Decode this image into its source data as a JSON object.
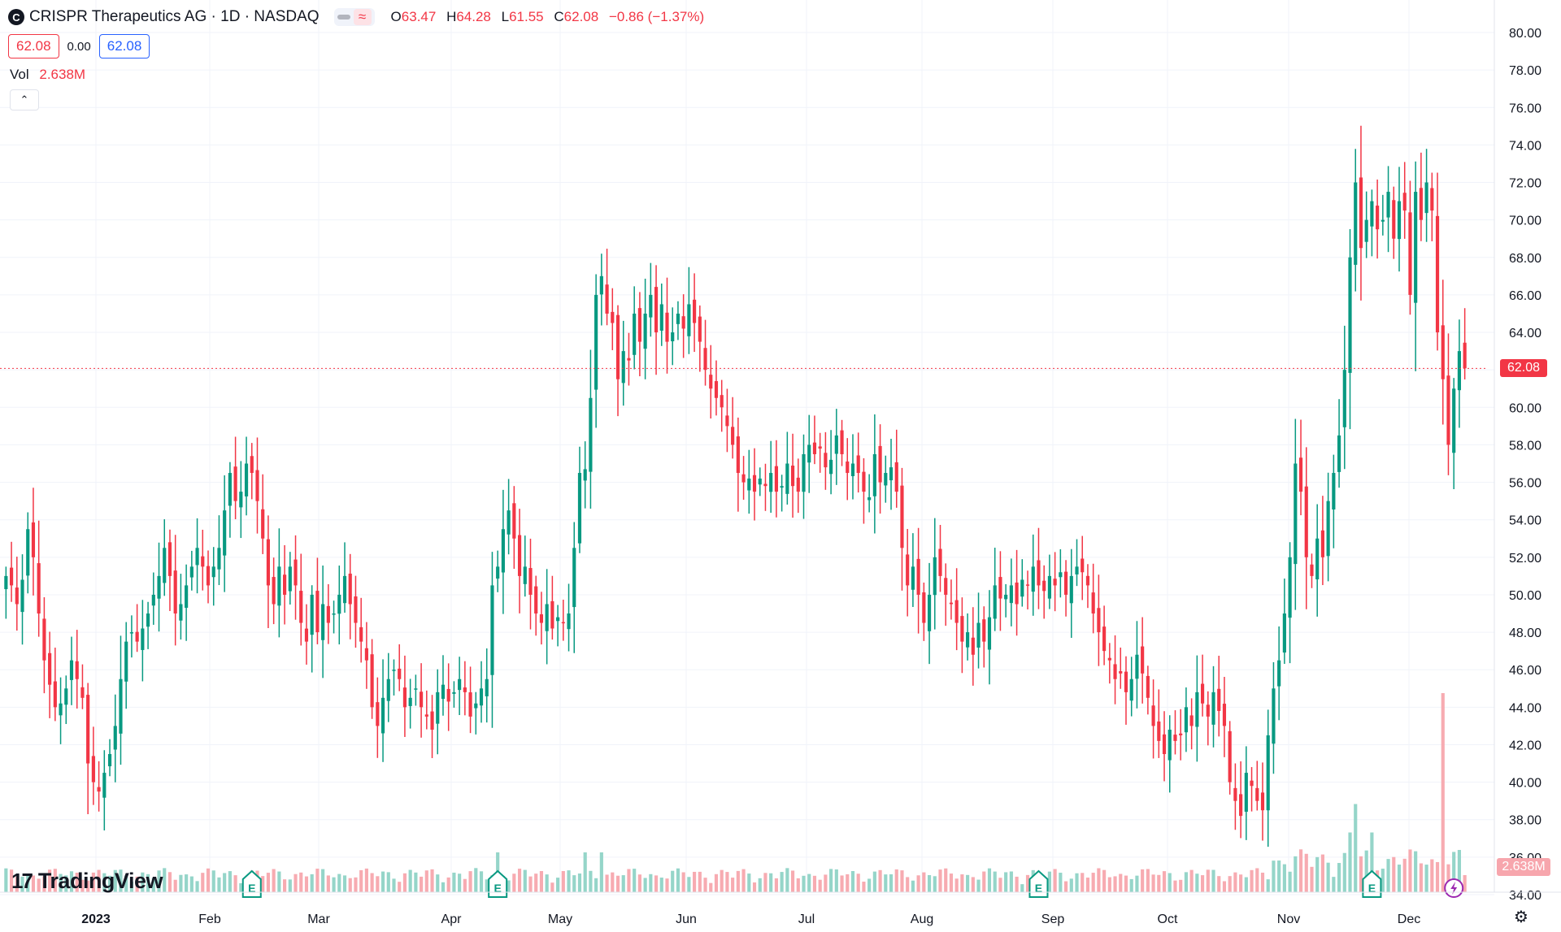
{
  "header": {
    "logo_glyph": "C",
    "symbol_line": "CRISPR Therapeutics AG · 1D · NASDAQ",
    "wave_icon": "≈",
    "ohlc": {
      "o_label": "O",
      "o_value": "63.47",
      "h_label": "H",
      "h_value": "64.28",
      "l_label": "L",
      "l_value": "61.55",
      "c_label": "C",
      "c_value": "62.08",
      "change": "−0.86 (−1.37%)"
    },
    "bid": "62.08",
    "spread": "0.00",
    "ask": "62.08",
    "vol_label": "Vol",
    "vol_value": "2.638M",
    "collapse_glyph": "⌃"
  },
  "brand": {
    "mark": "17",
    "name": "TradingView"
  },
  "last_price_label": "62.08",
  "last_volume_label": "2.638M",
  "earnings_marker": "E",
  "settings_glyph": "⚙",
  "colors": {
    "up": "#089981",
    "down": "#f23645",
    "up_volume": "#8fd3c6",
    "down_volume": "#f7a6ad",
    "grid": "#f0f3fa"
  },
  "chart_data": {
    "type": "candlestick",
    "symbol": "CRISPR Therapeutics AG · 1D · NASDAQ",
    "y_ticks": [
      "80.00",
      "78.00",
      "76.00",
      "74.00",
      "72.00",
      "70.00",
      "68.00",
      "66.00",
      "64.00",
      "62.00",
      "60.00",
      "58.00",
      "56.00",
      "54.00",
      "52.00",
      "50.00",
      "48.00",
      "46.00",
      "44.00",
      "42.00",
      "40.00",
      "38.00",
      "36.00",
      "34.00"
    ],
    "ylim": [
      34,
      80
    ],
    "x_labels": [
      "2023",
      "Feb",
      "Mar",
      "Apr",
      "May",
      "Jun",
      "Jul",
      "Aug",
      "Sep",
      "Oct",
      "Nov",
      "Dec"
    ],
    "earnings_at_bars": [
      45,
      90,
      189,
      250
    ],
    "close": [
      51.0,
      50.5,
      49.5,
      50.8,
      53.5,
      52.0,
      49.0,
      46.5,
      45.2,
      44.0,
      44.2,
      45.0,
      46.5,
      45.5,
      44.5,
      41.0,
      40.0,
      39.5,
      40.5,
      41.5,
      43.0,
      45.5,
      47.5,
      48.0,
      47.5,
      48.2,
      49.0,
      50.0,
      51.0,
      52.5,
      51.0,
      49.0,
      49.5,
      50.5,
      51.5,
      52.5,
      51.5,
      50.5,
      51.5,
      52.5,
      54.5,
      56.5,
      55.0,
      55.5,
      57.0,
      56.5,
      55.0,
      53.0,
      50.5,
      49.5,
      51.5,
      50.0,
      51.5,
      50.5,
      48.5,
      47.5,
      50.0,
      48.0,
      49.5,
      48.5,
      49.0,
      50.0,
      51.0,
      49.5,
      48.5,
      47.5,
      46.5,
      44.0,
      43.0,
      44.5,
      45.5,
      46.0,
      45.5,
      44.0,
      44.5,
      45.0,
      44.0,
      43.5,
      42.8,
      44.8,
      45.2,
      44.3,
      44.8,
      45.5,
      44.8,
      43.5,
      44.2,
      45.0,
      45.5,
      50.5,
      51.5,
      53.5,
      54.5,
      53.0,
      51.0,
      51.5,
      50.0,
      49.0,
      48.5,
      49.5,
      48.2,
      48.8,
      48.5,
      49.0,
      52.5,
      56.5,
      56.7,
      60.5,
      66.0,
      67.0,
      65.0,
      64.5,
      61.5,
      63.0,
      62.5,
      65.0,
      63.5,
      65.0,
      66.0,
      64.0,
      65.5,
      63.5,
      64.0,
      65.0,
      64.2,
      65.5,
      64.5,
      63.5,
      62.0,
      61.0,
      60.5,
      60.0,
      59.0,
      58.0,
      56.5,
      56.0,
      56.2,
      55.5,
      56.2,
      55.8,
      56.5,
      55.5,
      55.8,
      57.0,
      55.8,
      55.5,
      57.5,
      58.0,
      57.5,
      57.8,
      56.8,
      57.2,
      58.5,
      57.5,
      56.5,
      57.0,
      56.5,
      55.5,
      55.2,
      57.5,
      56.0,
      56.5,
      56.8,
      55.5,
      52.5,
      50.5,
      51.5,
      50.0,
      48.5,
      50.0,
      52.0,
      51.0,
      50.0,
      49.5,
      48.5,
      47.5,
      48.0,
      46.8,
      48.5,
      47.5,
      48.8,
      50.5,
      49.8,
      50.0,
      50.5,
      49.5,
      50.8,
      50.5,
      51.5,
      50.5,
      50.2,
      51.0,
      50.5,
      51.2,
      50.0,
      51.0,
      51.5,
      51.2,
      50.5,
      49.0,
      48.0,
      47.0,
      46.5,
      45.5,
      45.8,
      44.8,
      45.5,
      46.8,
      45.8,
      44.5,
      43.0,
      42.2,
      41.5,
      42.8,
      42.2,
      42.5,
      44.0,
      43.0,
      44.8,
      44.2,
      43.5,
      44.8,
      43.8,
      43.0,
      40.0,
      39.0,
      38.2,
      40.5,
      39.8,
      39.0,
      38.5,
      42.5,
      45.0,
      46.5,
      49.0,
      52.0,
      57.0,
      55.5,
      52.0,
      51.0,
      53.0,
      52.0,
      55.0,
      56.5,
      58.5,
      62.0,
      68.0,
      72.0,
      68.5,
      70.0,
      71.0,
      69.5,
      70.0,
      71.5,
      69.0,
      71.0,
      70.5,
      66.0,
      71.5,
      70.0,
      72.0,
      70.5,
      64.0,
      61.5,
      58.0,
      61.0,
      63.0,
      62.08
    ],
    "volume_values_relative": "volumes in shares, last bar = 2.638M (shown), tallest ≈ 13M in Dec"
  }
}
